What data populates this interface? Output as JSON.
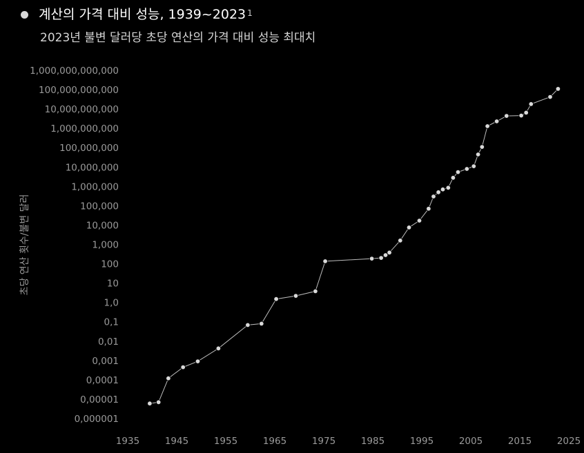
{
  "header": {
    "title": "계산의 가격 대비 성능, 1939~2023",
    "footnote_marker": "1",
    "subtitle": "2023년 불변 달러당 초당 연산의 가격 대비 성능 최대치"
  },
  "colors": {
    "background": "#000000",
    "line": "#bdbdbd",
    "point": "#d9d9d9",
    "text": "#ffffff",
    "axis_text": "#9a9a9a"
  },
  "chart_data": {
    "type": "scatter",
    "title": "계산의 가격 대비 성능, 1939~2023",
    "subtitle": "2023년 불변 달러당 초당 연산의 가격 대비 성능 최대치",
    "xlabel": "",
    "ylabel": "초당 연산 횟수/불변 달러",
    "yscale": "log",
    "xlim": [
      1935,
      2025
    ],
    "ylim": [
      1e-06,
      1000000000000
    ],
    "grid": false,
    "legend": "none",
    "x_ticks": [
      "1935",
      "1945",
      "1955",
      "1965",
      "1975",
      "1985",
      "1995",
      "2005",
      "2015",
      "2025"
    ],
    "y_ticks": [
      "0,000001",
      "0,00001",
      "0,0001",
      "0,001",
      "0,01",
      "0,1",
      "1,0",
      "10",
      "100",
      "1,000",
      "10,000",
      "100,000",
      "1,000,000",
      "10,000,000",
      "100,000,000",
      "1,000,000,000",
      "10,000,000,000",
      "100,000,000,000",
      "1,000,000,000,000"
    ],
    "x": [
      1939.5,
      1941.3,
      1943.3,
      1946.3,
      1949.3,
      1953.5,
      1959.5,
      1962.3,
      1965.3,
      1969.3,
      1973.3,
      1975.3,
      1984.8,
      1986.7,
      1987.6,
      1988.4,
      1990.6,
      1992.4,
      1994.5,
      1996.4,
      1997.4,
      1998.4,
      1999.3,
      2000.4,
      2001.4,
      2002.4,
      2004.2,
      2005.6,
      2006.5,
      2007.3,
      2008.4,
      2010.3,
      2012.3,
      2015.3,
      2016.3,
      2017.3,
      2021.2,
      2022.8
    ],
    "y": [
      6e-06,
      7e-06,
      0.00012,
      0.00045,
      0.0009,
      0.0042,
      0.068,
      0.08,
      1.5,
      2.2,
      3.8,
      135,
      185,
      200,
      280,
      380,
      1600,
      7500,
      17000,
      70000,
      300000,
      500000,
      700000,
      850000,
      2800000,
      5500000,
      8000000,
      11000000,
      45000000,
      110000000,
      1300000000,
      2300000000,
      4400000000,
      4600000000,
      6500000000,
      18000000000,
      42000000000,
      110000000000
    ]
  }
}
